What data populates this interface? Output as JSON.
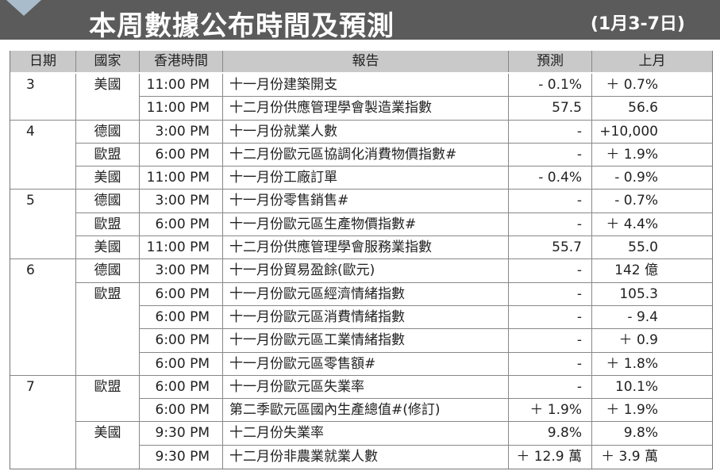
{
  "header": {
    "title": "本周數據公布時間及預測",
    "date_range": "(1月3-7日)"
  },
  "table": {
    "columns": [
      "日期",
      "國家",
      "香港時間",
      "報告",
      "預測",
      "上月"
    ],
    "rows": [
      [
        "3",
        "美國",
        "11:00 PM",
        "十一月份建築開支",
        "- 0.1%",
        "＋ 0.7%"
      ],
      [
        null,
        null,
        "11:00 PM",
        "十二月份供應管理學會製造業指數",
        "57.5",
        "56.6"
      ],
      [
        "4",
        "德國",
        "3:00 PM",
        "十一月份就業人數",
        "-",
        "+10,000"
      ],
      [
        null,
        "歐盟",
        "6:00 PM",
        "十二月份歐元區協調化消費物價指數#",
        "-",
        "＋ 1.9%"
      ],
      [
        null,
        "美國",
        "11:00 PM",
        "十一月份工廠訂單",
        "- 0.4%",
        "- 0.9%"
      ],
      [
        "5",
        "德國",
        "3:00 PM",
        "十一月份零售銷售#",
        "-",
        "- 0.7%"
      ],
      [
        null,
        "歐盟",
        "6:00 PM",
        "十一月份歐元區生產物價指數#",
        "-",
        "＋ 4.4%"
      ],
      [
        null,
        "美國",
        "11:00 PM",
        "十二月份供應管理學會服務業指數",
        "55.7",
        "55.0"
      ],
      [
        "6",
        "德國",
        "3:00 PM",
        "十一月份貿易盈餘(歐元)",
        "-",
        "142 億"
      ],
      [
        null,
        "歐盟",
        "6:00 PM",
        "十一月份歐元區經濟情緒指數",
        "-",
        "105.3"
      ],
      [
        null,
        null,
        "6:00 PM",
        "十一月份歐元區消費情緒指數",
        "-",
        "- 9.4"
      ],
      [
        null,
        null,
        "6:00 PM",
        "十一月份歐元區工業情緒指數",
        "-",
        "＋ 0.9"
      ],
      [
        null,
        null,
        "6:00 PM",
        "十一月份歐元區零售額#",
        "-",
        "＋ 1.8%"
      ],
      [
        "7",
        "歐盟",
        "6:00 PM",
        "十一月份歐元區失業率",
        "-",
        "10.1%"
      ],
      [
        null,
        null,
        "6:00 PM",
        "第二季歐元區國內生產總值#(修訂)",
        "＋ 1.9%",
        "＋ 1.9%"
      ],
      [
        null,
        "美國",
        "9:30 PM",
        "十二月份失業率",
        "9.8%",
        "9.8%"
      ],
      [
        null,
        null,
        "9:30 PM",
        "十二月份非農業就業人數",
        "＋ 12.9 萬",
        "＋ 3.9 萬"
      ]
    ]
  }
}
